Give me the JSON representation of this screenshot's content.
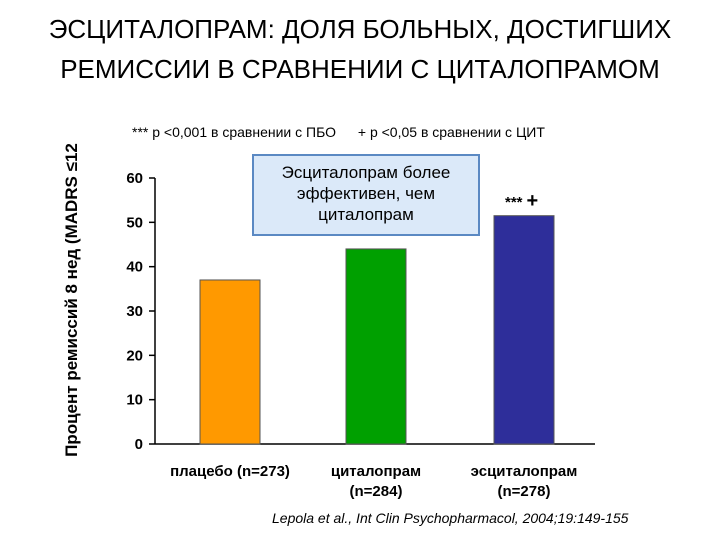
{
  "title_line1": "ЭСЦИТАЛОПРАМ: ДОЛЯ БОЛЬНЫХ, ДОСТИГШИХ",
  "title_line2": "РЕМИССИИ В СРАВНЕНИИ С ЦИТАЛОПРАМОМ",
  "legend": {
    "item1": "*** p <0,001 в сравнении с ПБО",
    "item2": "+ p <0,05 в сравнении с ЦИТ"
  },
  "callout": "Эсциталопрам более эффективен, чем циталопрам",
  "significance": {
    "stars": "***",
    "plus": "+"
  },
  "citation": "Lepola et al., Int Clin Psychopharmacol, 2004;19:149-155",
  "chart_data": {
    "type": "bar",
    "ylabel": "Процент ремиссий 8 нед (MADRS ≤12",
    "categories": [
      "плацебо (n=273)",
      "циталопрам (n=284)",
      "эсциталопрам (n=278)"
    ],
    "category_lines": [
      [
        "плацебо (n=273)"
      ],
      [
        "циталопрам",
        "(n=284)"
      ],
      [
        "эсциталопрам",
        "(n=278)"
      ]
    ],
    "values": [
      37,
      44,
      51.5
    ],
    "colors": [
      "#ff9900",
      "#00a000",
      "#2e2e9a"
    ],
    "yticks": [
      "0",
      "10",
      "20",
      "30",
      "40",
      "50",
      "60"
    ],
    "ylim": [
      0,
      60
    ],
    "grid": false
  }
}
